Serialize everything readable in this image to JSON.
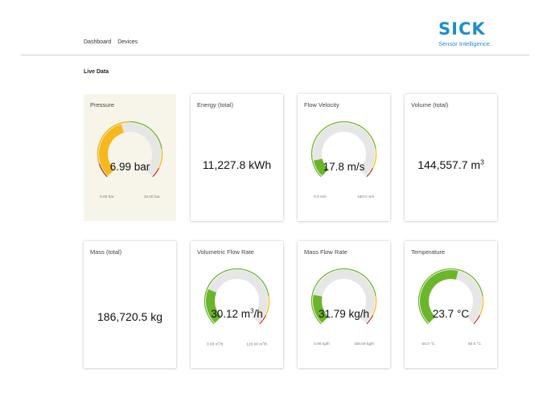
{
  "nav": {
    "dashboard": "Dashboard",
    "devices": "Devices"
  },
  "logo": {
    "brand": "SICK",
    "tagline": "Sensor Intelligence."
  },
  "section": {
    "title": "Live Data"
  },
  "colors": {
    "accent": "#1d8dd1",
    "normal": "#6ab52a",
    "warning": "#f6b81b",
    "alarm": "#c0392b",
    "track": "#e6e6e6"
  },
  "cards": [
    {
      "id": "pressure",
      "title": "Pressure",
      "type": "gauge",
      "highlight": true,
      "value": "6.99",
      "unit": "bar",
      "min_label": "0.00 bar",
      "max_label": "16.00 bar",
      "fraction": 0.44,
      "status": "warning"
    },
    {
      "id": "energy",
      "title": "Energy (total)",
      "type": "value",
      "value": "11,227.8",
      "unit": "kWh"
    },
    {
      "id": "flow-velocity",
      "title": "Flow Velocity",
      "type": "gauge",
      "value": "17.8",
      "unit": "m/s",
      "min_label": "0.0 m/s",
      "max_label": "150.0 m/s",
      "fraction": 0.12,
      "status": "normal"
    },
    {
      "id": "volume",
      "title": "Volume (total)",
      "type": "value",
      "value": "144,557.7",
      "unit": "m",
      "unit_sup": "3"
    },
    {
      "id": "mass",
      "title": "Mass (total)",
      "type": "value",
      "value": "186,720.5",
      "unit": "kg"
    },
    {
      "id": "volumetric-flow",
      "title": "Volumetric Flow Rate",
      "type": "gauge",
      "value": "30.12",
      "unit": "m",
      "unit_sup": "3",
      "unit_suffix": "/h",
      "min_label": "0.00 m",
      "min_label_sup": "3",
      "min_label_suffix": "/h",
      "max_label": "120.00 m",
      "max_label_sup": "3",
      "max_label_suffix": "/h",
      "fraction": 0.25,
      "status": "normal"
    },
    {
      "id": "mass-flow",
      "title": "Mass Flow Rate",
      "type": "gauge",
      "value": "31.79",
      "unit": "kg/h",
      "min_label": "0.00 kg/h",
      "max_label": "150.00 kg/h",
      "fraction": 0.21,
      "status": "normal"
    },
    {
      "id": "temperature",
      "title": "Temperature",
      "type": "gauge",
      "value": "23.7",
      "unit": "°C",
      "min_label": "-20.0 °C",
      "max_label": "60.0 °C",
      "fraction": 0.55,
      "status": "normal"
    }
  ]
}
